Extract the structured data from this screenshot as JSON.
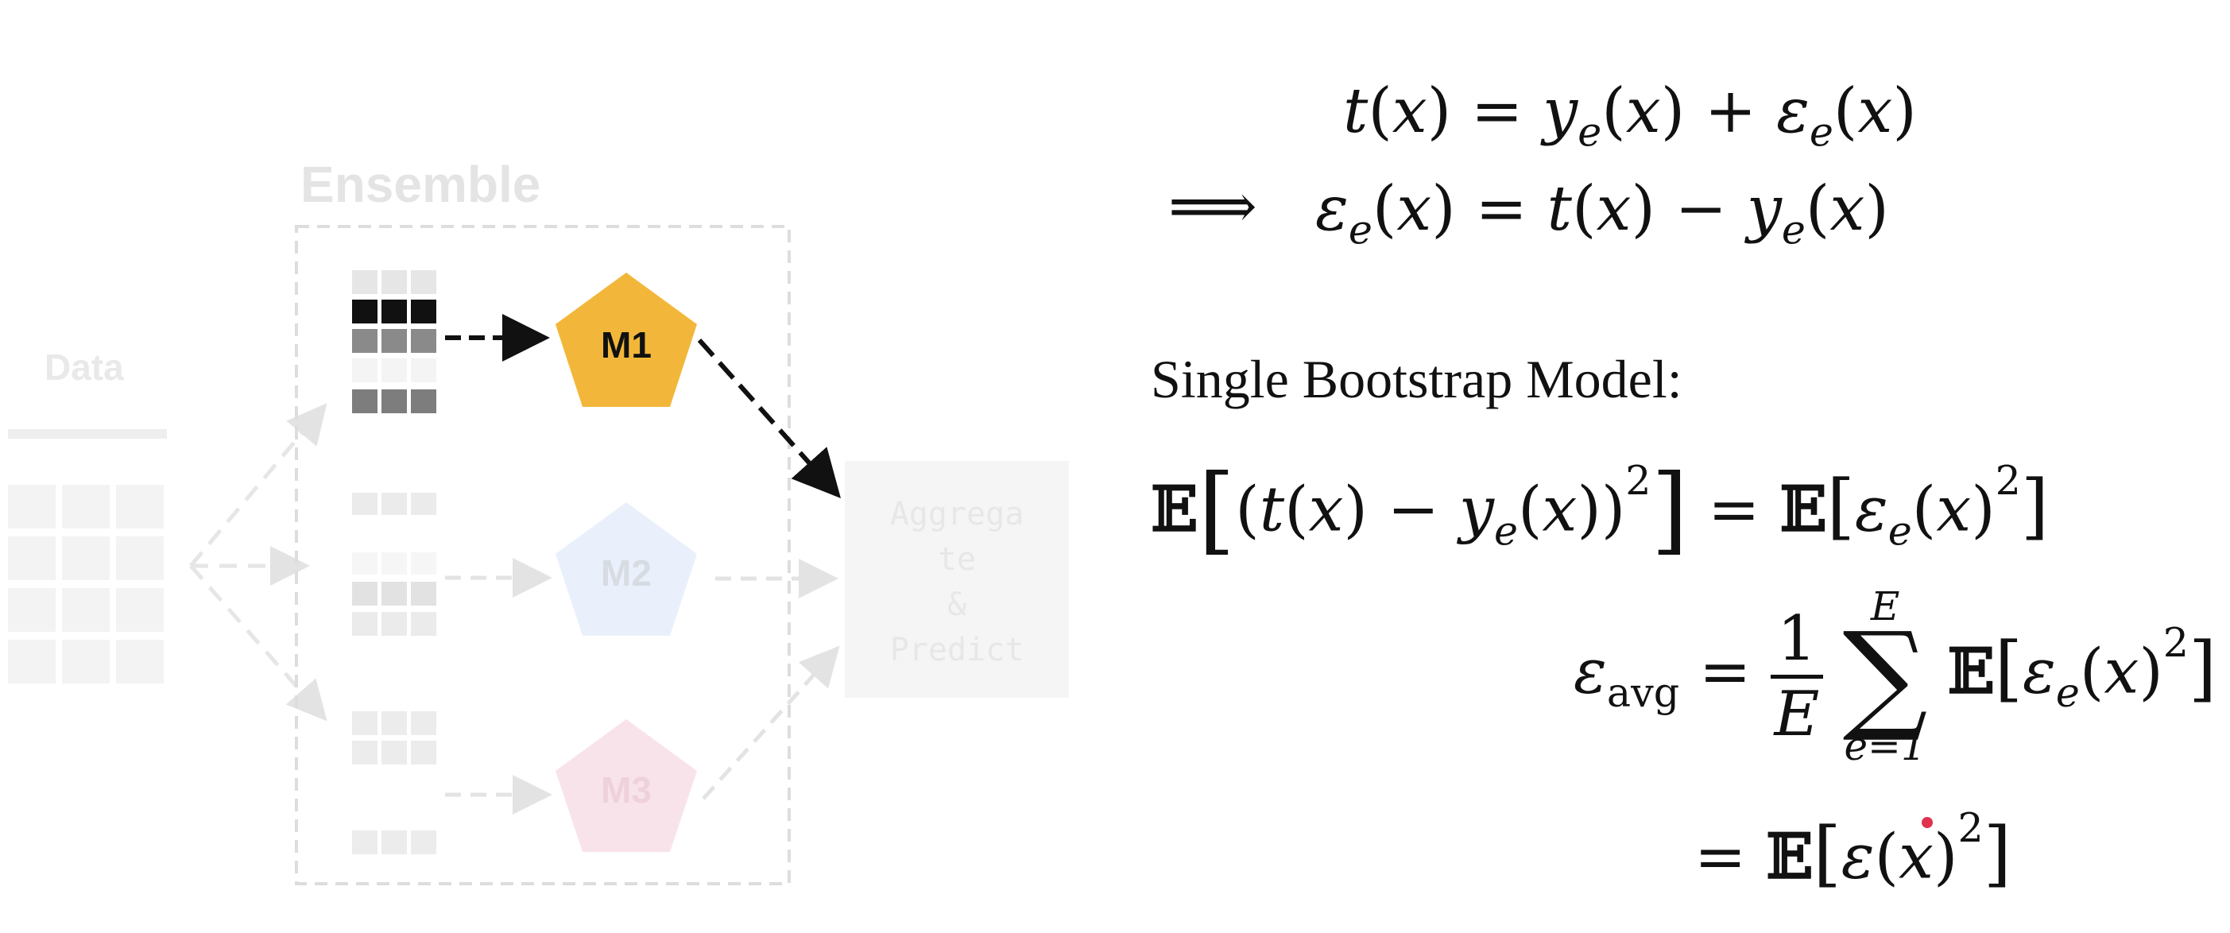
{
  "diagram": {
    "ensemble_label": "Ensemble",
    "data_label": "Data",
    "model_1": "M1",
    "model_2": "M2",
    "model_3": "M3",
    "aggregate_lines": [
      "Aggrega",
      "te",
      "&",
      "Predict"
    ],
    "colors": {
      "m1": "#f2b73a",
      "m2": "#eaf0fb",
      "m3": "#f9e3ea",
      "faded": "#e6e6e6",
      "arrow": "#111111"
    }
  },
  "equations": {
    "eq1": "t(x) = y_e(x) + ε_e(x)",
    "eq2_implies": "⟹",
    "eq2": "ε_e(x) = t(x) − y_e(x)",
    "caption": "Single Bootstrap Model:",
    "eq3_lhs": "𝔼[(t(x) − y_e(x))²]",
    "eq3_rhs": "= 𝔼[ε_e(x)²]",
    "eq4_lhs": "ε_avg",
    "eq4_frac_num": "1",
    "eq4_frac_den": "E",
    "eq4_sum_top": "E",
    "eq4_sum_bottom": "e=1",
    "eq4_term": "𝔼[ε_e(x)²]",
    "eq5": "= 𝔼[ε(x)²]"
  }
}
